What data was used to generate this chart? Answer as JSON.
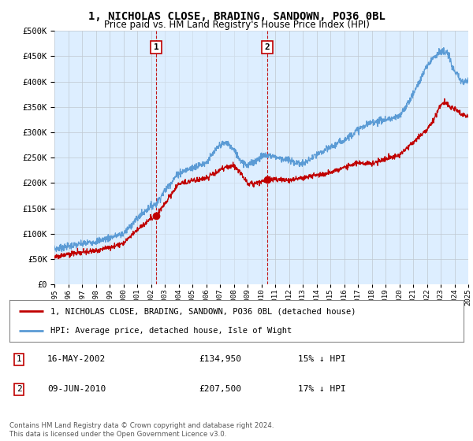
{
  "title": "1, NICHOLAS CLOSE, BRADING, SANDOWN, PO36 0BL",
  "subtitle": "Price paid vs. HM Land Registry's House Price Index (HPI)",
  "legend_line1": "1, NICHOLAS CLOSE, BRADING, SANDOWN, PO36 0BL (detached house)",
  "legend_line2": "HPI: Average price, detached house, Isle of Wight",
  "annotation1_date": "16-MAY-2002",
  "annotation1_price": "£134,950",
  "annotation1_hpi": "15% ↓ HPI",
  "annotation2_date": "09-JUN-2010",
  "annotation2_price": "£207,500",
  "annotation2_hpi": "17% ↓ HPI",
  "footer": "Contains HM Land Registry data © Crown copyright and database right 2024.\nThis data is licensed under the Open Government Licence v3.0.",
  "hpi_color": "#5b9bd5",
  "price_color": "#c00000",
  "bg_plot": "#ddeeff",
  "bg_fig": "#ffffff",
  "shade_color": "#cce0f5",
  "ylim": [
    0,
    500000
  ],
  "yticks": [
    0,
    50000,
    100000,
    150000,
    200000,
    250000,
    300000,
    350000,
    400000,
    450000,
    500000
  ],
  "sale1_x": 2002.37,
  "sale1_y": 134950,
  "sale2_x": 2010.44,
  "sale2_y": 207500,
  "xmin": 1995,
  "xmax": 2025
}
